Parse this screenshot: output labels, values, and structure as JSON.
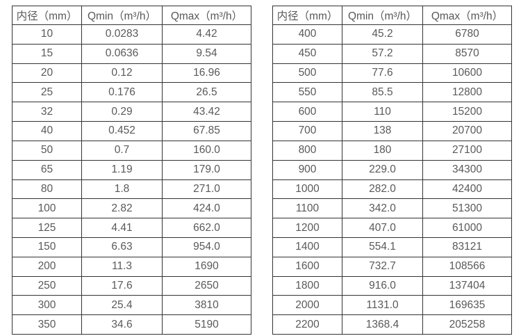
{
  "colors": {
    "background": "#ffffff",
    "border": "#333333",
    "text": "#595959"
  },
  "tables": [
    {
      "name": "small-diameter-flow-rates",
      "headers": [
        "内径（mm）",
        "Qmin（m³/h）",
        "Qmax（m³/h）"
      ],
      "rows": [
        [
          "10",
          "0.0283",
          "4.42"
        ],
        [
          "15",
          "0.0636",
          "9.54"
        ],
        [
          "20",
          "0.12",
          "16.96"
        ],
        [
          "25",
          "0.176",
          "26.5"
        ],
        [
          "32",
          "0.29",
          "43.42"
        ],
        [
          "40",
          "0.452",
          "67.85"
        ],
        [
          "50",
          "0.7",
          "160.0"
        ],
        [
          "65",
          "1.19",
          "179.0"
        ],
        [
          "80",
          "1.8",
          "271.0"
        ],
        [
          "100",
          "2.82",
          "424.0"
        ],
        [
          "125",
          "4.41",
          "662.0"
        ],
        [
          "150",
          "6.63",
          "954.0"
        ],
        [
          "200",
          "11.3",
          "1690"
        ],
        [
          "250",
          "17.6",
          "2650"
        ],
        [
          "300",
          "25.4",
          "3810"
        ],
        [
          "350",
          "34.6",
          "5190"
        ]
      ]
    },
    {
      "name": "large-diameter-flow-rates",
      "headers": [
        "内径（mm）",
        "Qmin（m³/h）",
        "Qmax（m³/h）"
      ],
      "rows": [
        [
          "400",
          "45.2",
          "6780"
        ],
        [
          "450",
          "57.2",
          "8570"
        ],
        [
          "500",
          "77.6",
          "10600"
        ],
        [
          "550",
          "85.5",
          "12800"
        ],
        [
          "600",
          "110",
          "15200"
        ],
        [
          "700",
          "138",
          "20700"
        ],
        [
          "800",
          "180",
          "27100"
        ],
        [
          "900",
          "229.0",
          "34300"
        ],
        [
          "1000",
          "282.0",
          "42400"
        ],
        [
          "1100",
          "342.0",
          "51300"
        ],
        [
          "1200",
          "407.0",
          "61000"
        ],
        [
          "1400",
          "554.1",
          "83121"
        ],
        [
          "1600",
          "732.7",
          "108566"
        ],
        [
          "1800",
          "916.0",
          "137404"
        ],
        [
          "2000",
          "1131.0",
          "169635"
        ],
        [
          "2200",
          "1368.4",
          "205258"
        ]
      ]
    }
  ]
}
